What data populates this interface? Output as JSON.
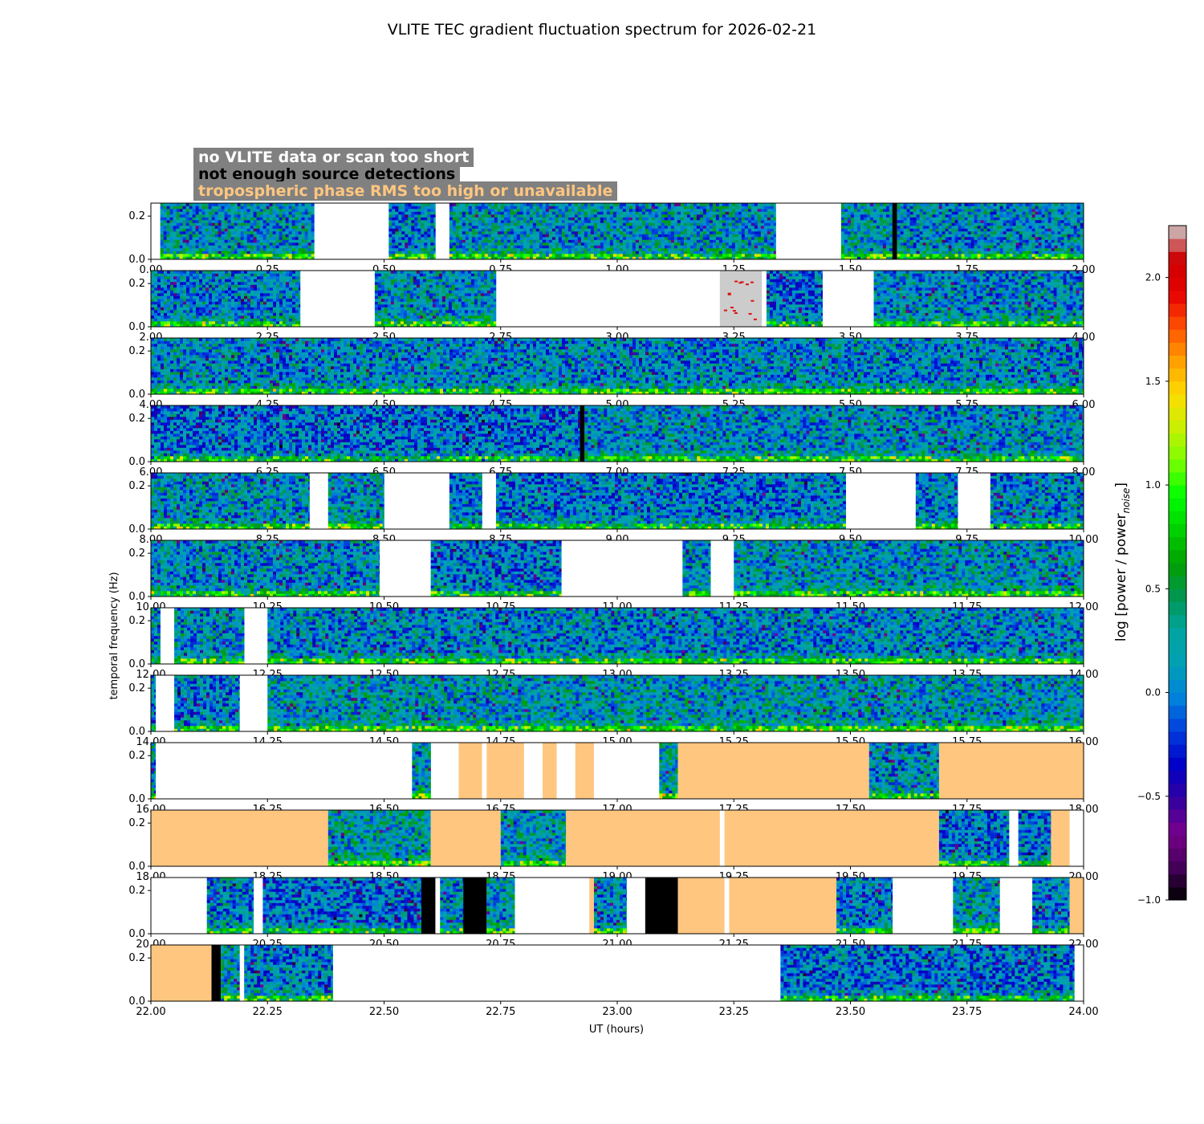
{
  "title": "VLITE TEC gradient fluctuation spectrum for 2026-02-21",
  "legend": [
    {
      "text": "no VLITE data or scan too short",
      "color": "#ffffff"
    },
    {
      "text": "not enough source detections",
      "color": "#000000"
    },
    {
      "text": "tropospheric phase RMS too high or unavailable",
      "color": "#ffc680"
    }
  ],
  "chart_data": {
    "type": "heatmap",
    "title": "VLITE TEC gradient fluctuation spectrum for 2026-02-21",
    "xlabel": "UT (hours)",
    "ylabel": "temporal frequency (Hz)",
    "colorbar_label": "log [power / power_noise]",
    "colorbar_ticks": [
      "−1.0",
      "−0.5",
      "0.0",
      "0.5",
      "1.0",
      "1.5",
      "2.0"
    ],
    "colorbar_range": [
      -1.0,
      2.25
    ],
    "colormap": "nipy_spectral",
    "ylim": [
      0,
      0.26
    ],
    "y_ticks": [
      "0.0",
      "0.2"
    ],
    "x_ticks_per_panel": 0.25,
    "panels": [
      {
        "range": [
          0,
          2
        ],
        "x_ticks": [
          "0.00",
          "0.25",
          "0.50",
          "0.75",
          "1.00",
          "1.25",
          "1.50",
          "1.75",
          "2.00"
        ],
        "segments": [
          [
            0.02,
            0.35,
            "data"
          ],
          [
            0.51,
            0.61,
            "data"
          ],
          [
            0.64,
            1.34,
            "data"
          ],
          [
            1.48,
            1.59,
            "data"
          ],
          [
            1.59,
            1.6,
            "nodet"
          ],
          [
            1.6,
            2.0,
            "data"
          ]
        ]
      },
      {
        "range": [
          2,
          4
        ],
        "x_ticks": [
          "2.00",
          "2.25",
          "2.50",
          "2.75",
          "3.00",
          "3.25",
          "3.50",
          "3.75",
          "4.00"
        ],
        "segments": [
          [
            2.0,
            2.32,
            "data"
          ],
          [
            2.48,
            2.74,
            "data"
          ],
          [
            3.22,
            3.31,
            "gray"
          ],
          [
            3.32,
            3.44,
            "data"
          ],
          [
            3.55,
            4.0,
            "data"
          ]
        ]
      },
      {
        "range": [
          4,
          6
        ],
        "x_ticks": [
          "4.00",
          "4.25",
          "4.50",
          "4.75",
          "5.00",
          "5.25",
          "5.50",
          "5.75",
          "6.00"
        ],
        "segments": [
          [
            4.0,
            6.0,
            "data"
          ]
        ]
      },
      {
        "range": [
          6,
          8
        ],
        "x_ticks": [
          "6.00",
          "6.25",
          "6.50",
          "6.75",
          "7.00",
          "7.25",
          "7.50",
          "7.75",
          "8.00"
        ],
        "segments": [
          [
            6.0,
            6.92,
            "data"
          ],
          [
            6.92,
            6.93,
            "nodet"
          ],
          [
            6.93,
            8.0,
            "data"
          ]
        ]
      },
      {
        "range": [
          8,
          10
        ],
        "x_ticks": [
          "8.00",
          "8.25",
          "8.50",
          "8.75",
          "9.00",
          "9.25",
          "9.50",
          "9.75",
          "10.00"
        ],
        "segments": [
          [
            8.0,
            8.34,
            "data"
          ],
          [
            8.38,
            8.5,
            "data"
          ],
          [
            8.64,
            8.71,
            "data"
          ],
          [
            8.74,
            9.49,
            "data"
          ],
          [
            9.64,
            9.73,
            "data"
          ],
          [
            9.8,
            10.0,
            "data"
          ]
        ]
      },
      {
        "range": [
          10,
          12
        ],
        "x_ticks": [
          "10.00",
          "10.25",
          "10.50",
          "10.75",
          "11.00",
          "11.25",
          "11.50",
          "11.75",
          "12.00"
        ],
        "segments": [
          [
            10.0,
            10.49,
            "data"
          ],
          [
            10.6,
            10.88,
            "data"
          ],
          [
            11.14,
            11.2,
            "data"
          ],
          [
            11.25,
            12.0,
            "data"
          ]
        ]
      },
      {
        "range": [
          12,
          14
        ],
        "x_ticks": [
          "12.00",
          "12.25",
          "12.50",
          "12.75",
          "13.00",
          "13.25",
          "13.50",
          "13.75",
          "14.00"
        ],
        "segments": [
          [
            12.0,
            12.02,
            "data"
          ],
          [
            12.05,
            12.2,
            "data"
          ],
          [
            12.25,
            14.0,
            "data"
          ]
        ]
      },
      {
        "range": [
          14,
          16
        ],
        "x_ticks": [
          "14.00",
          "14.25",
          "14.50",
          "14.75",
          "15.00",
          "15.25",
          "15.50",
          "15.75",
          "16.00"
        ],
        "segments": [
          [
            14.0,
            14.01,
            "data"
          ],
          [
            14.05,
            14.19,
            "data"
          ],
          [
            14.25,
            16.0,
            "data"
          ]
        ]
      },
      {
        "range": [
          16,
          18
        ],
        "x_ticks": [
          "16.00",
          "16.25",
          "16.50",
          "16.75",
          "17.00",
          "17.25",
          "17.50",
          "17.75",
          "18.00"
        ],
        "segments": [
          [
            16.0,
            16.01,
            "data"
          ],
          [
            16.56,
            16.6,
            "data"
          ],
          [
            16.66,
            16.71,
            "tropo"
          ],
          [
            16.72,
            16.8,
            "tropo"
          ],
          [
            16.84,
            16.87,
            "tropo"
          ],
          [
            16.91,
            16.95,
            "tropo"
          ],
          [
            17.09,
            17.13,
            "data"
          ],
          [
            17.13,
            17.54,
            "tropo"
          ],
          [
            17.54,
            17.69,
            "data"
          ],
          [
            17.69,
            18.0,
            "tropo"
          ]
        ]
      },
      {
        "range": [
          18,
          20
        ],
        "x_ticks": [
          "18.00",
          "18.25",
          "18.50",
          "18.75",
          "19.00",
          "19.25",
          "19.50",
          "19.75",
          "20.00"
        ],
        "segments": [
          [
            18.0,
            18.38,
            "tropo"
          ],
          [
            18.38,
            18.6,
            "data"
          ],
          [
            18.6,
            18.75,
            "tropo"
          ],
          [
            18.75,
            18.89,
            "data"
          ],
          [
            18.89,
            19.22,
            "tropo"
          ],
          [
            19.23,
            19.69,
            "tropo"
          ],
          [
            19.69,
            19.84,
            "data"
          ],
          [
            19.86,
            19.93,
            "data"
          ],
          [
            19.93,
            19.97,
            "tropo"
          ]
        ]
      },
      {
        "range": [
          20,
          22
        ],
        "x_ticks": [
          "20.00",
          "20.25",
          "20.50",
          "20.75",
          "21.00",
          "21.25",
          "21.50",
          "21.75",
          "22.00"
        ],
        "segments": [
          [
            20.12,
            20.22,
            "data"
          ],
          [
            20.24,
            20.58,
            "data"
          ],
          [
            20.58,
            20.61,
            "nodet"
          ],
          [
            20.62,
            20.67,
            "data"
          ],
          [
            20.67,
            20.72,
            "nodet"
          ],
          [
            20.72,
            20.78,
            "data"
          ],
          [
            20.94,
            20.95,
            "tropo"
          ],
          [
            20.95,
            21.02,
            "data"
          ],
          [
            21.06,
            21.13,
            "nodet"
          ],
          [
            21.13,
            21.23,
            "tropo"
          ],
          [
            21.24,
            21.47,
            "tropo"
          ],
          [
            21.47,
            21.59,
            "data"
          ],
          [
            21.72,
            21.82,
            "data"
          ],
          [
            21.89,
            21.97,
            "data"
          ],
          [
            21.97,
            22.0,
            "tropo"
          ]
        ]
      },
      {
        "range": [
          22,
          24
        ],
        "x_ticks": [
          "22.00",
          "22.25",
          "22.50",
          "22.75",
          "23.00",
          "23.25",
          "23.50",
          "23.75",
          "24.00"
        ],
        "segments": [
          [
            22.0,
            22.13,
            "tropo"
          ],
          [
            22.13,
            22.15,
            "nodet"
          ],
          [
            22.15,
            22.19,
            "data"
          ],
          [
            22.2,
            22.39,
            "data"
          ],
          [
            23.35,
            23.98,
            "data"
          ]
        ]
      }
    ]
  }
}
